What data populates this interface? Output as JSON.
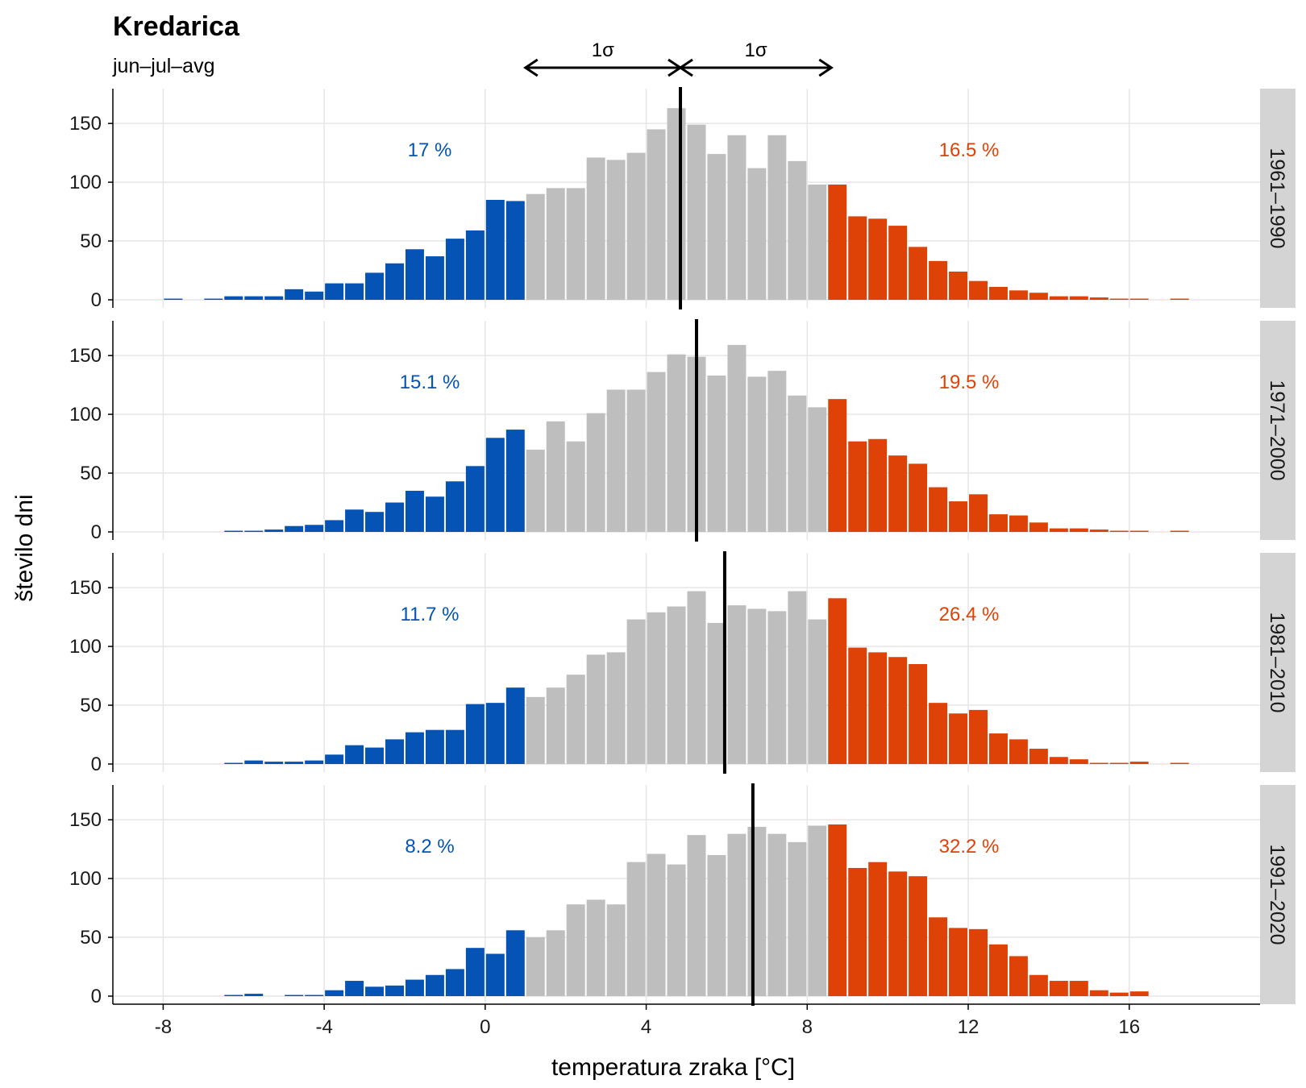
{
  "chart_data": {
    "type": "bar",
    "title": "Kredarica",
    "subtitle": "jun–jul–avg",
    "xlabel": "temperatura zraka [°C]",
    "ylabel": "število dni",
    "xlim": [
      -9.25,
      19.25
    ],
    "ylim": [
      0,
      170
    ],
    "x_ticks": [
      -8,
      -4,
      0,
      4,
      8,
      12,
      16
    ],
    "x_tick_labels": [
      "-8",
      "-4",
      "0",
      "4",
      "8",
      "12",
      "16"
    ],
    "y_ticks": [
      0,
      50,
      100,
      150
    ],
    "y_tick_labels": [
      "0",
      "50",
      "100",
      "150"
    ],
    "bin_width": 0.5,
    "bin_start": -8,
    "sigma_arrows": {
      "label": "1σ",
      "mean": 4.85,
      "lower": 1.0,
      "upper": 8.6
    },
    "thresholds": {
      "cold_below": 1.0,
      "warm_above": 8.6
    },
    "colors": {
      "cold": "#0453b5",
      "mid": "#bebebe",
      "warm": "#df4206",
      "mean_line": "#000000",
      "strip": "#d4d4d4",
      "grid": "#e6e6e6"
    },
    "panels": [
      {
        "period": "1961–1990",
        "mean": 4.85,
        "cold_pct": "17 %",
        "warm_pct": "16.5 %",
        "values": [
          1,
          0,
          1,
          3,
          3,
          3,
          9,
          7,
          14,
          14,
          23,
          31,
          43,
          37,
          52,
          59,
          85,
          84,
          90,
          95,
          95,
          121,
          119,
          125,
          145,
          163,
          149,
          124,
          140,
          112,
          140,
          118,
          98,
          98,
          71,
          69,
          63,
          45,
          33,
          24,
          16,
          11,
          8,
          6,
          3,
          3,
          2,
          1,
          1,
          0,
          1
        ]
      },
      {
        "period": "1971–2000",
        "mean": 5.25,
        "cold_pct": "15.1 %",
        "warm_pct": "19.5 %",
        "values": [
          0,
          0,
          0,
          1,
          1,
          2,
          5,
          6,
          10,
          19,
          17,
          25,
          35,
          30,
          43,
          56,
          80,
          87,
          70,
          94,
          77,
          101,
          121,
          121,
          136,
          151,
          149,
          133,
          159,
          132,
          137,
          116,
          106,
          113,
          77,
          79,
          65,
          58,
          38,
          26,
          32,
          15,
          14,
          8,
          3,
          3,
          2,
          1,
          1,
          0,
          1
        ]
      },
      {
        "period": "1981–2010",
        "mean": 5.95,
        "cold_pct": "11.7 %",
        "warm_pct": "26.4 %",
        "values": [
          0,
          0,
          0,
          1,
          3,
          2,
          2,
          3,
          8,
          16,
          14,
          21,
          27,
          29,
          29,
          51,
          52,
          65,
          57,
          65,
          76,
          93,
          95,
          123,
          129,
          134,
          147,
          120,
          135,
          132,
          130,
          147,
          123,
          141,
          99,
          95,
          91,
          85,
          52,
          43,
          46,
          26,
          21,
          13,
          6,
          4,
          1,
          1,
          2,
          0,
          1
        ]
      },
      {
        "period": "1991–2020",
        "mean": 6.65,
        "cold_pct": "8.2 %",
        "warm_pct": "32.2 %",
        "values": [
          0,
          0,
          0,
          1,
          2,
          0,
          1,
          1,
          5,
          13,
          8,
          9,
          14,
          18,
          23,
          41,
          36,
          56,
          50,
          56,
          78,
          82,
          78,
          114,
          121,
          112,
          137,
          120,
          138,
          144,
          138,
          131,
          145,
          146,
          109,
          114,
          106,
          102,
          67,
          58,
          57,
          44,
          34,
          18,
          13,
          13,
          5,
          3,
          4,
          0,
          0
        ]
      }
    ]
  }
}
